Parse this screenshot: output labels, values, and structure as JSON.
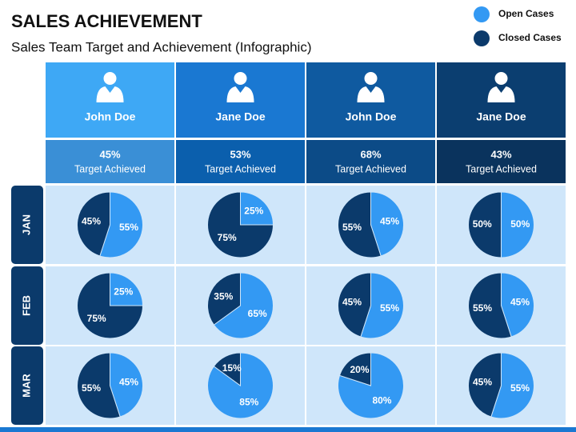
{
  "title": "SALES ACHIEVEMENT",
  "subtitle": "Sales Team Target and Achievement (Infographic)",
  "legend": [
    {
      "name": "Open Cases",
      "color": "#3399f3"
    },
    {
      "name": "Closed Cases",
      "color": "#0b3a6b"
    }
  ],
  "columns": [
    {
      "name": "John Doe",
      "achieved": "45%",
      "caption": "Target Achieved",
      "top": "#3ea8f5",
      "bottom": "#3a8fd6"
    },
    {
      "name": "Jane Doe",
      "achieved": "53%",
      "caption": "Target Achieved",
      "top": "#1a78d2",
      "bottom": "#0b5fad"
    },
    {
      "name": "John Doe",
      "achieved": "68%",
      "caption": "Target Achieved",
      "top": "#0f5aa0",
      "bottom": "#0c4b87"
    },
    {
      "name": "Jane Doe",
      "achieved": "43%",
      "caption": "Target Achieved",
      "top": "#0b3e70",
      "bottom": "#0a335d"
    }
  ],
  "rows": [
    "JAN",
    "FEB",
    "MAR"
  ],
  "chart_data": [
    {
      "type": "pie",
      "values": [
        55,
        45
      ],
      "value_labels": [
        "55%",
        "45%"
      ]
    },
    {
      "type": "pie",
      "values": [
        25,
        75
      ],
      "value_labels": [
        "25%",
        "75%"
      ]
    },
    {
      "type": "pie",
      "values": [
        45,
        55
      ],
      "value_labels": [
        "45%",
        "55%"
      ]
    },
    {
      "type": "pie",
      "values": [
        50,
        50
      ],
      "value_labels": [
        "50%",
        "50%"
      ]
    },
    {
      "type": "pie",
      "values": [
        25,
        75
      ],
      "value_labels": [
        "25%",
        "75%"
      ]
    },
    {
      "type": "pie",
      "values": [
        65,
        35
      ],
      "value_labels": [
        "65%",
        "35%"
      ]
    },
    {
      "type": "pie",
      "values": [
        55,
        45
      ],
      "value_labels": [
        "55%",
        "45%"
      ]
    },
    {
      "type": "pie",
      "values": [
        45,
        55
      ],
      "value_labels": [
        "45%",
        "55%"
      ]
    },
    {
      "type": "pie",
      "values": [
        45,
        55
      ],
      "value_labels": [
        "45%",
        "55%"
      ]
    },
    {
      "type": "pie",
      "values": [
        85,
        15
      ],
      "value_labels": [
        "85%",
        "15%"
      ]
    },
    {
      "type": "pie",
      "values": [
        80,
        20
      ],
      "value_labels": [
        "80%",
        "20%"
      ]
    },
    {
      "type": "pie",
      "values": [
        55,
        45
      ],
      "value_labels": [
        "55%",
        "45%"
      ]
    }
  ]
}
